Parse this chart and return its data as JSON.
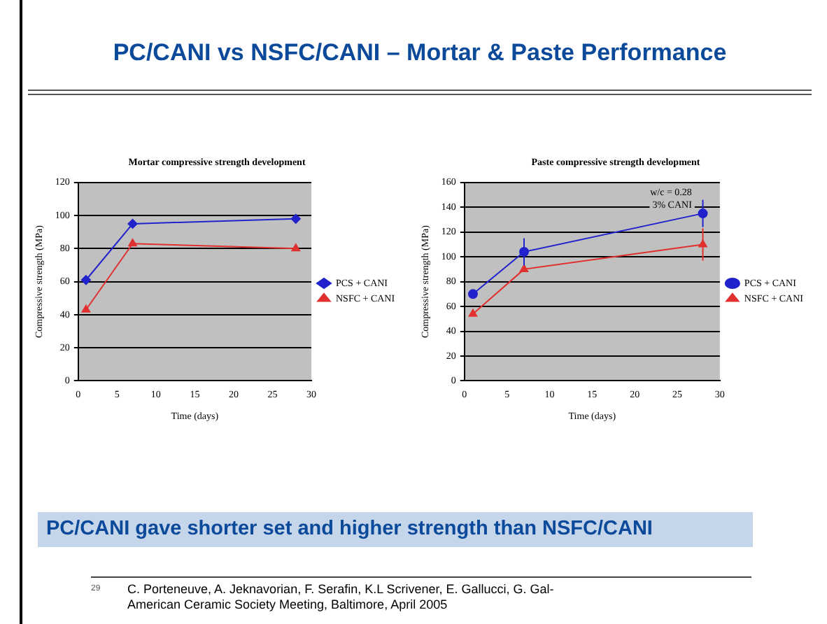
{
  "chart_data": [
    {
      "type": "other",
      "title": "PC/CANI vs NSFC/CANI – Mortar & Paste Performance",
      "annotations": [
        "PC/CANI gave shorter set and higher strength than NSFC/CANI",
        "29",
        "C. Porteneuve, A. Jeknavorian, F. Serafin,  K.L Scrivener, E. Gallucci, G. Gal-",
        "American Ceramic Society Meeting, Baltimore, April 2005"
      ]
    },
    {
      "type": "line",
      "title": "Mortar compressive strength development",
      "xlabel": "Time (days)",
      "ylabel": "Compressive strength (MPa)",
      "x": [
        1,
        7,
        28
      ],
      "xlim": [
        0,
        30
      ],
      "xticks": [
        0,
        5,
        10,
        15,
        20,
        25,
        30
      ],
      "ylim": [
        0,
        120
      ],
      "yticks": [
        0,
        20,
        40,
        60,
        80,
        100,
        120
      ],
      "grid": "y",
      "legend": "right",
      "series": [
        {
          "name": "PCS + CANI",
          "color": "#2222cc",
          "marker": "diamond",
          "values": [
            61,
            95,
            98
          ]
        },
        {
          "name": "NSFC + CANI",
          "color": "#e03030",
          "marker": "triangle",
          "values": [
            43,
            83,
            80
          ]
        }
      ]
    },
    {
      "type": "line",
      "title": "Paste compressive strength development",
      "xlabel": "Time (days)",
      "ylabel": "Compressive strength (MPa)",
      "x": [
        1,
        7,
        28
      ],
      "xlim": [
        0,
        30
      ],
      "xticks": [
        0,
        5,
        10,
        15,
        20,
        25,
        30
      ],
      "ylim": [
        0,
        160
      ],
      "yticks": [
        0,
        20,
        40,
        60,
        80,
        100,
        120,
        140,
        160
      ],
      "grid": "y",
      "legend": "right",
      "annotations": [
        "w/c = 0.28",
        "3% CANI"
      ],
      "series": [
        {
          "name": "PCS + CANI",
          "color": "#2222cc",
          "marker": "circle",
          "values": [
            70,
            104,
            135
          ],
          "errors": [
            null,
            11,
            11
          ]
        },
        {
          "name": "NSFC + CANI",
          "color": "#e03030",
          "marker": "triangle",
          "values": [
            54,
            90,
            110
          ],
          "errors": [
            null,
            null,
            13
          ]
        }
      ]
    }
  ]
}
